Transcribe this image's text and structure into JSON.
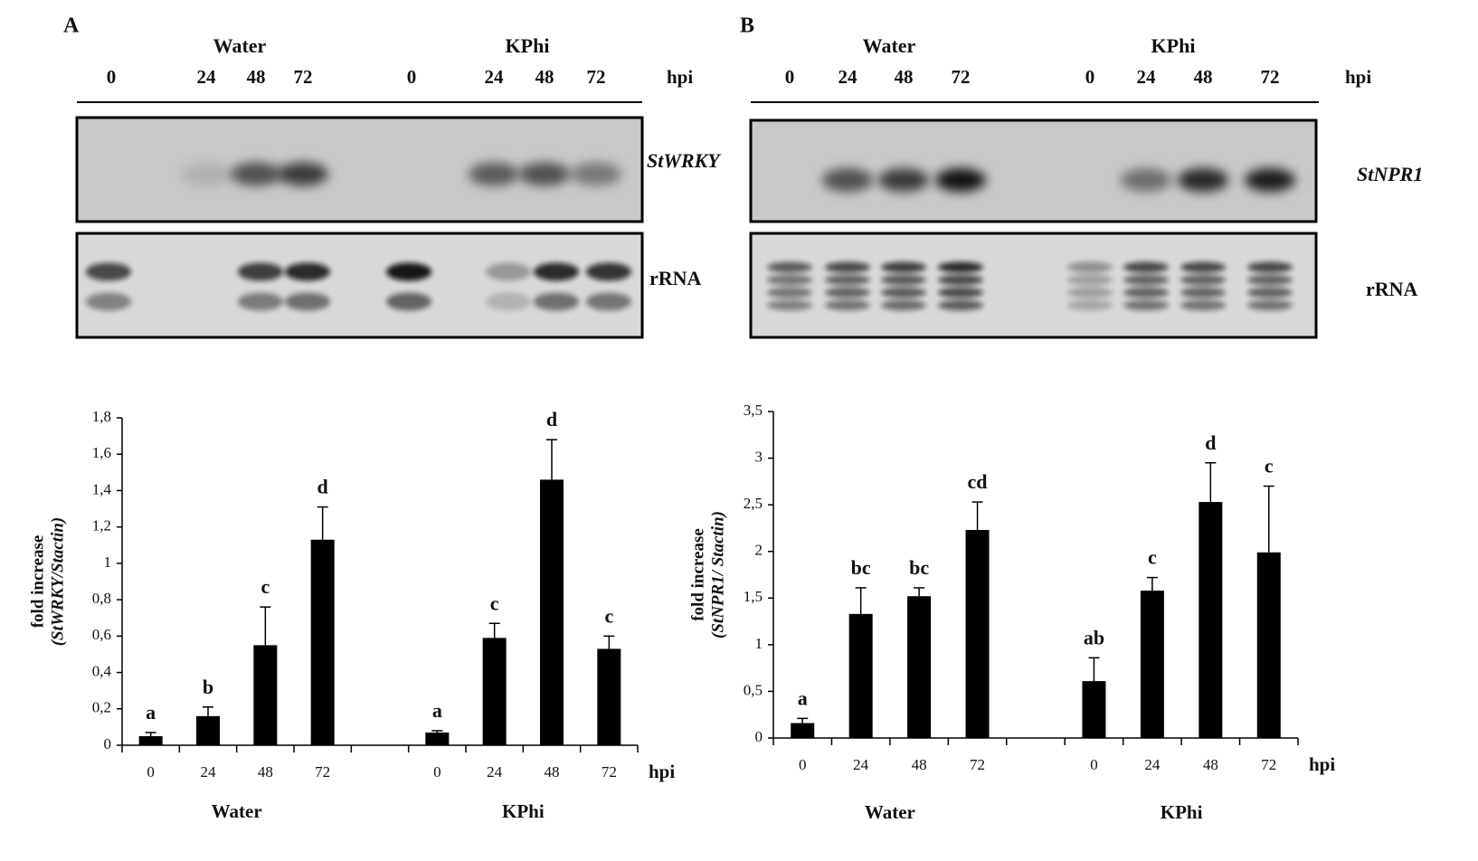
{
  "chart_data": [
    {
      "type": "bar",
      "panel": "A",
      "blot": {
        "lanes": [
          "0",
          "24",
          "48",
          "72",
          "0",
          "24",
          "48",
          "72"
        ],
        "unit": "hpi",
        "rows": [
          "StWRKY",
          "rRNA"
        ]
      },
      "groups": [
        "Water",
        "KPhi"
      ],
      "categories": [
        "0",
        "24",
        "48",
        "72",
        null,
        "0",
        "24",
        "48",
        "72"
      ],
      "values": [
        0.05,
        0.16,
        0.55,
        1.13,
        null,
        0.07,
        0.59,
        1.46,
        0.53
      ],
      "errors": [
        0.02,
        0.05,
        0.21,
        0.18,
        null,
        0.01,
        0.08,
        0.22,
        0.07
      ],
      "annotations": [
        "a",
        "b",
        "c",
        "d",
        null,
        "a",
        "c",
        "d",
        "c"
      ],
      "color": "#000000",
      "xlabel": "hpi",
      "ylabel": [
        "fold increase",
        "(StWRKY/Stactin)"
      ],
      "ylim": [
        0,
        1.8
      ],
      "yticks": [
        0,
        {
          "value": 0.2,
          "label": "0,2"
        },
        {
          "value": 0.4,
          "label": "0,4"
        },
        {
          "value": 0.6,
          "label": "0,6"
        },
        {
          "value": 0.8,
          "label": "0,8"
        },
        1,
        {
          "value": 1.2,
          "label": "1,2"
        },
        {
          "value": 1.4,
          "label": "1,4"
        },
        {
          "value": 1.6,
          "label": "1,6"
        },
        {
          "value": 1.8,
          "label": "1,8"
        }
      ]
    },
    {
      "type": "bar",
      "panel": "B",
      "blot": {
        "lanes": [
          "0",
          "24",
          "48",
          "72",
          "0",
          "24",
          "48",
          "72"
        ],
        "unit": "hpi",
        "rows": [
          "StNPR1",
          "rRNA"
        ]
      },
      "groups": [
        "Water",
        "KPhi"
      ],
      "categories": [
        "0",
        "24",
        "48",
        "72",
        null,
        "0",
        "24",
        "48",
        "72"
      ],
      "values": [
        0.16,
        1.33,
        1.52,
        2.23,
        null,
        0.61,
        1.58,
        2.53,
        1.99
      ],
      "errors": [
        0.05,
        0.28,
        0.09,
        0.3,
        null,
        0.25,
        0.14,
        0.42,
        0.71
      ],
      "annotations": [
        "a",
        "bc",
        "bc",
        "cd",
        null,
        "ab",
        "c",
        "d",
        "c"
      ],
      "color": "#000000",
      "xlabel": "hpi",
      "ylabel": [
        "fold increase",
        "(StNPR1/ Stactin)"
      ],
      "ylim": [
        0,
        3.5
      ],
      "yticks": [
        0,
        {
          "value": 0.5,
          "label": "0,5"
        },
        1,
        {
          "value": 1.5,
          "label": "1,5"
        },
        2,
        {
          "value": 2.5,
          "label": "2,5"
        },
        3,
        {
          "value": 3.5,
          "label": "3,5"
        }
      ]
    }
  ]
}
